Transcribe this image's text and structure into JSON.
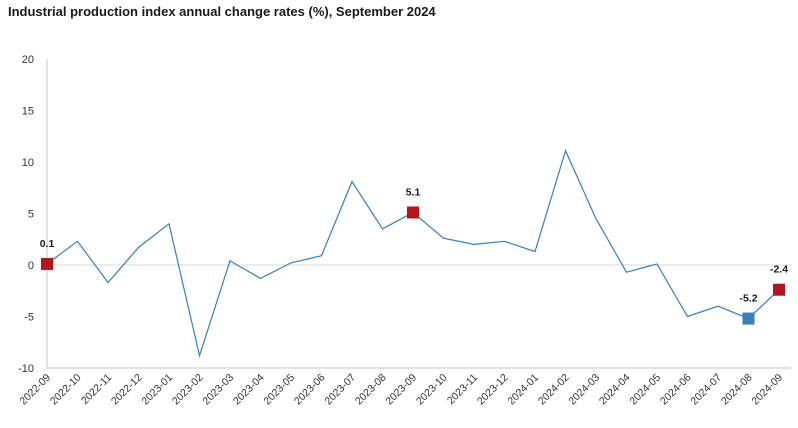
{
  "chart_data": {
    "type": "line",
    "title": "Industrial production index annual change rates (%), September 2024",
    "xlabel": "",
    "ylabel": "",
    "ylim": [
      -10,
      20
    ],
    "yticks": [
      -10,
      -5,
      0,
      5,
      10,
      15,
      20
    ],
    "grid": false,
    "categories": [
      "2022-09",
      "2022-10",
      "2022-11",
      "2022-12",
      "2023-01",
      "2023-02",
      "2023-03",
      "2023-04",
      "2023-05",
      "2023-06",
      "2023-07",
      "2023-08",
      "2023-09",
      "2023-10",
      "2023-11",
      "2023-12",
      "2024-01",
      "2024-02",
      "2024-03",
      "2024-04",
      "2024-05",
      "2024-06",
      "2024-07",
      "2024-08",
      "2024-09"
    ],
    "values": [
      0.1,
      2.3,
      -1.7,
      1.7,
      4.0,
      -8.8,
      0.4,
      -1.3,
      0.2,
      0.9,
      8.1,
      3.5,
      5.1,
      2.6,
      2.0,
      2.3,
      1.3,
      11.1,
      4.5,
      -0.7,
      0.1,
      -5.0,
      -4.0,
      -5.2,
      -2.4
    ],
    "line_color": "#3a7fb5",
    "highlighted_points": [
      {
        "category": "2022-09",
        "value": 0.1,
        "label": "0.1",
        "color": "#b0161e"
      },
      {
        "category": "2023-09",
        "value": 5.1,
        "label": "5.1",
        "color": "#b0161e"
      },
      {
        "category": "2024-08",
        "value": -5.2,
        "label": "-5.2",
        "color": "#3a7fb5"
      },
      {
        "category": "2024-09",
        "value": -2.4,
        "label": "-2.4",
        "color": "#b0161e"
      }
    ]
  }
}
